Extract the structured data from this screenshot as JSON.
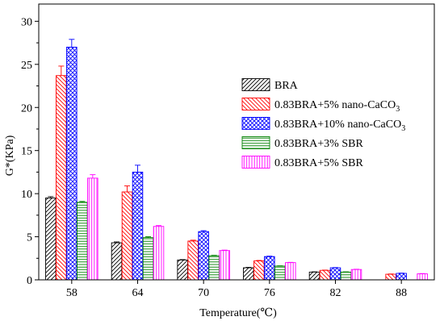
{
  "chart_data": {
    "type": "bar",
    "xlabel": "Temperature(℃)",
    "ylabel": "G*(KPa)",
    "categories": [
      "58",
      "64",
      "70",
      "76",
      "82",
      "88"
    ],
    "ylim": [
      0,
      32
    ],
    "yticks": [
      0,
      5,
      10,
      15,
      20,
      25,
      30
    ],
    "grid": false,
    "legend_position": "right",
    "series": [
      {
        "name": "BRA",
        "name_base": "BRA",
        "name_sub": "",
        "name_tail": "",
        "color": "#000000",
        "pattern": "diagonal-lines-up",
        "values": [
          9.5,
          4.3,
          2.3,
          1.4,
          0.9,
          null
        ],
        "errors": [
          0.15,
          0.1,
          0.05,
          0.05,
          0.03,
          null
        ]
      },
      {
        "name": "0.83BRA+5% nano-CaCO3",
        "name_base": "0.83BRA+5% nano-CaCO",
        "name_sub": "3",
        "name_tail": "",
        "color": "#ff0000",
        "pattern": "diagonal-lines-down",
        "values": [
          23.7,
          10.2,
          4.5,
          2.2,
          1.1,
          0.65
        ],
        "errors": [
          1.1,
          0.7,
          0.1,
          0.05,
          0.03,
          0.03
        ]
      },
      {
        "name": "0.83BRA+10% nano-CaCO3",
        "name_base": "0.83BRA+10% nano-CaCO",
        "name_sub": "3",
        "name_tail": "",
        "color": "#0000ff",
        "pattern": "crosshatch",
        "values": [
          27.0,
          12.5,
          5.6,
          2.7,
          1.4,
          0.75
        ],
        "errors": [
          0.9,
          0.8,
          0.1,
          0.05,
          0.03,
          0.03
        ]
      },
      {
        "name": "0.83BRA+3% SBR",
        "name_base": "0.83BRA+3% SBR",
        "name_sub": "",
        "name_tail": "",
        "color": "#008000",
        "pattern": "horizontal-lines",
        "values": [
          9.0,
          4.9,
          2.8,
          1.6,
          0.9,
          null
        ],
        "errors": [
          0.1,
          0.1,
          0.05,
          0.03,
          0.03,
          null
        ]
      },
      {
        "name": "0.83BRA+5% SBR",
        "name_base": "0.83BRA+5% SBR",
        "name_sub": "",
        "name_tail": "",
        "color": "#ff00ff",
        "pattern": "vertical-lines",
        "values": [
          11.8,
          6.2,
          3.4,
          2.0,
          1.2,
          0.7
        ],
        "errors": [
          0.4,
          0.1,
          0.05,
          0.03,
          0.03,
          0.03
        ]
      }
    ]
  }
}
